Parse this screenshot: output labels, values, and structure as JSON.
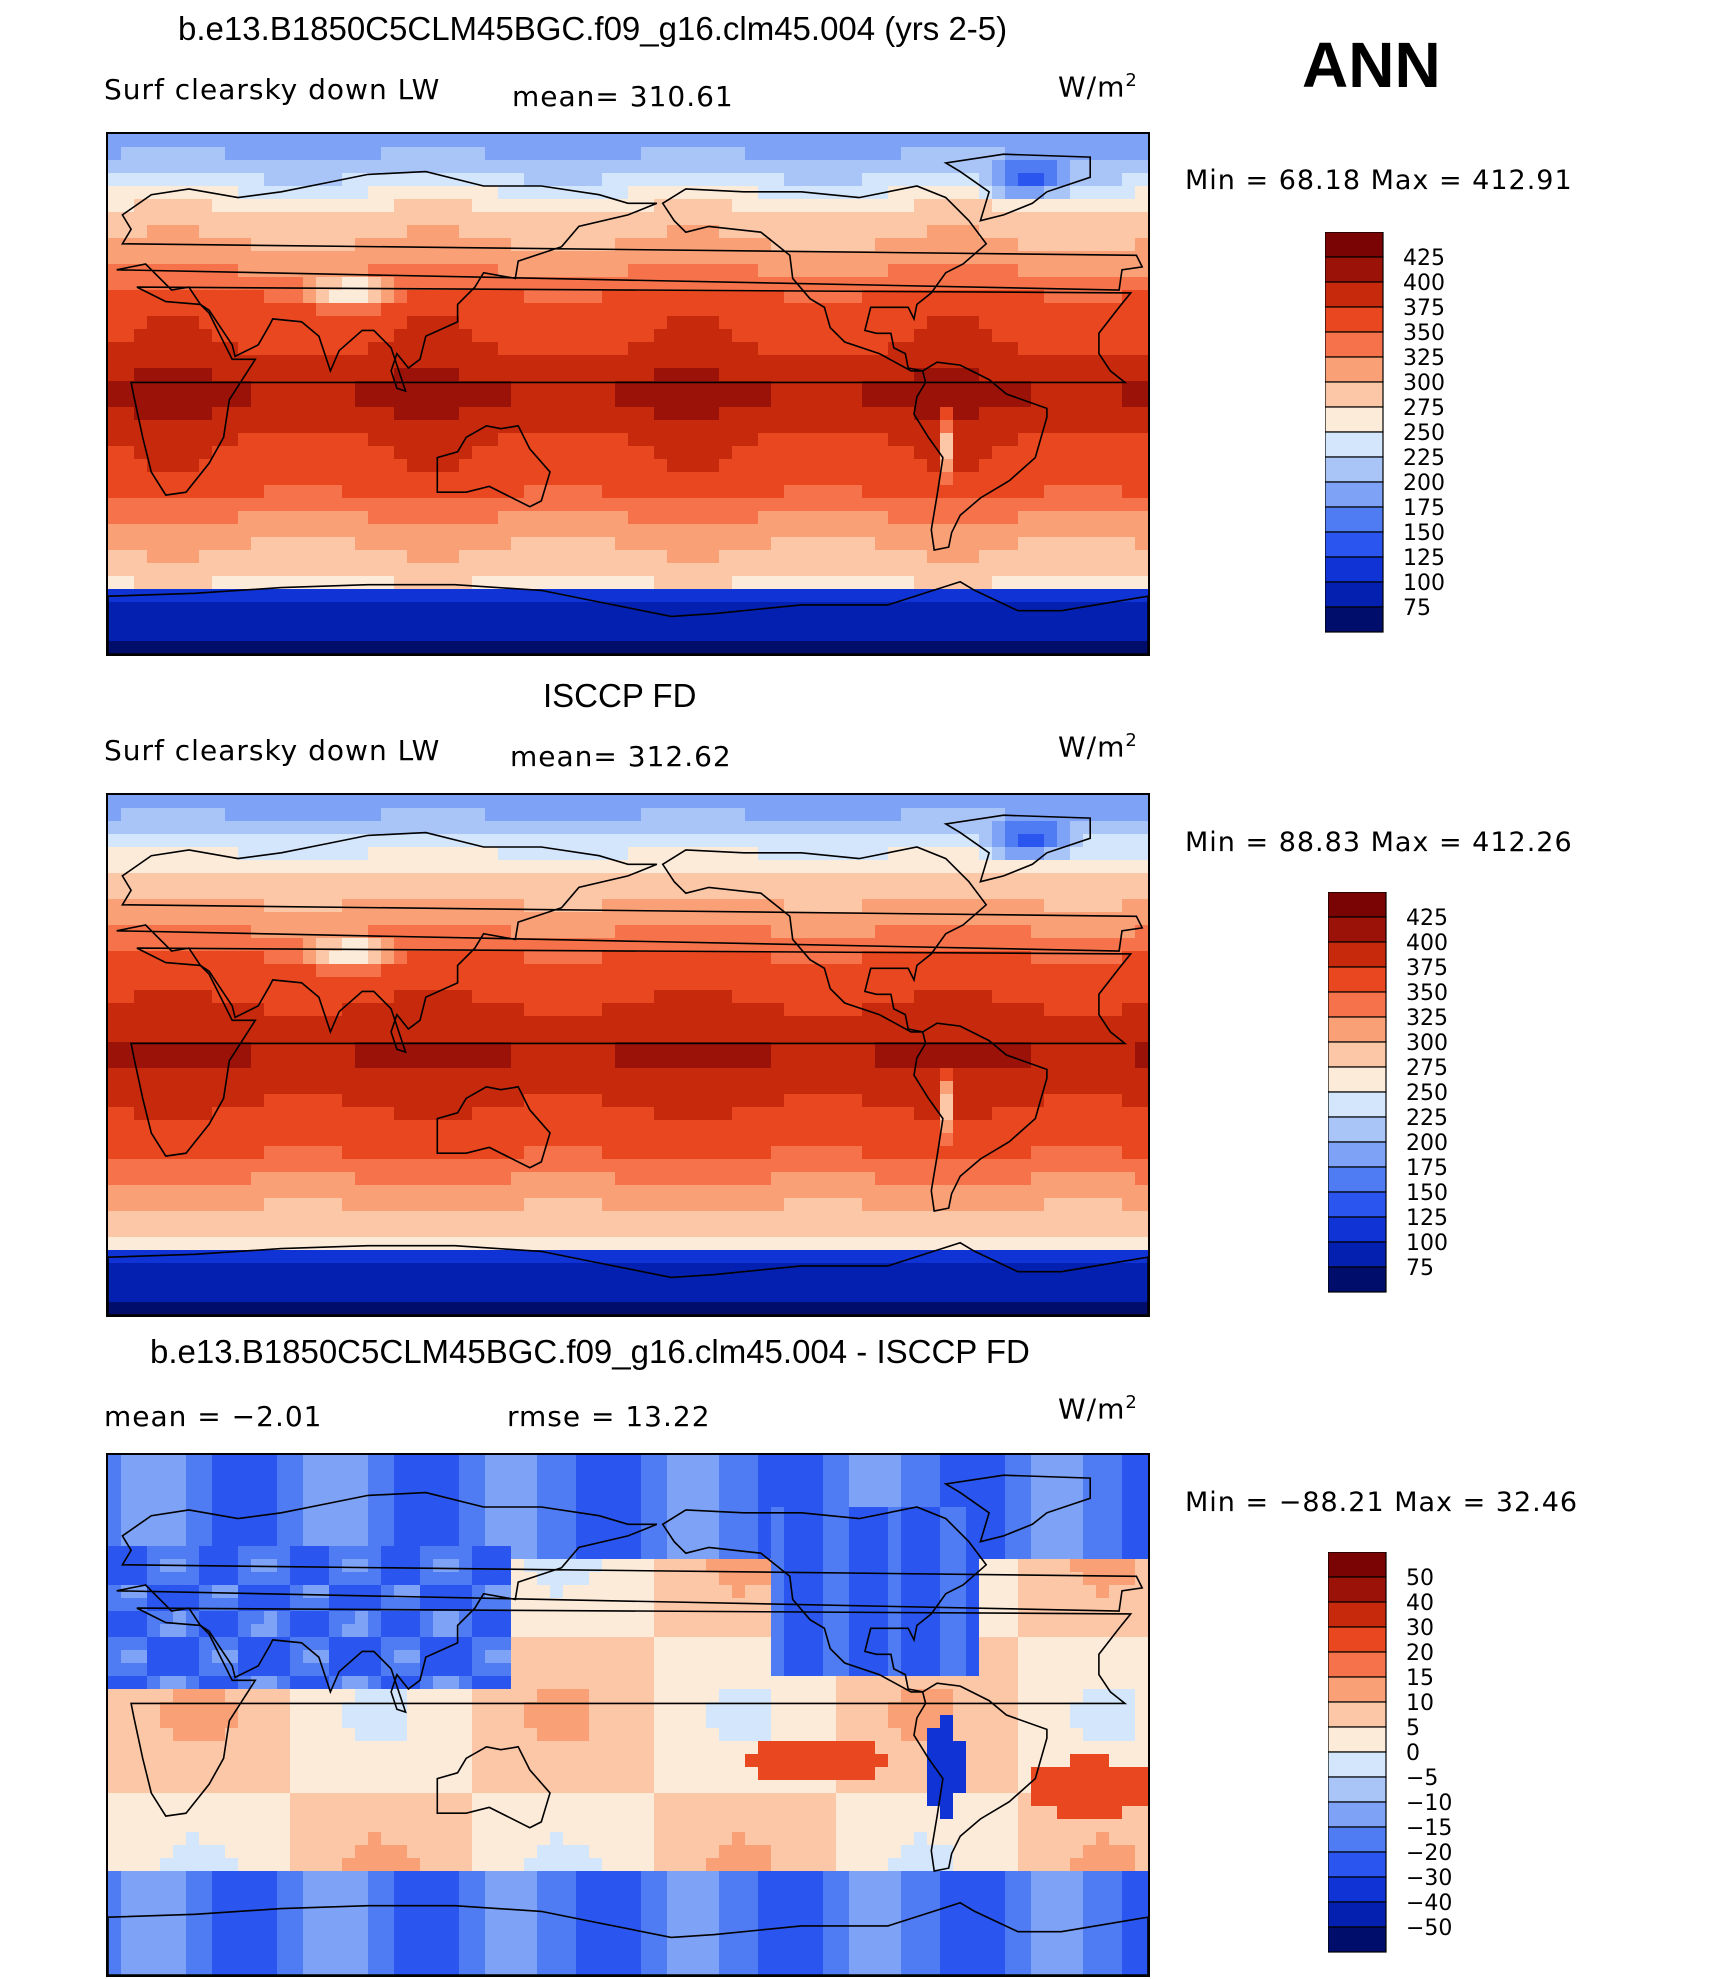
{
  "season": "ANN",
  "panels": [
    {
      "id": "model",
      "title": "b.e13.B1850C5CLM45BGC.f09_g16.clm45.004 (yrs 2-5)",
      "left_label": "Surf clearsky down LW",
      "mid_label": "mean=  310.61",
      "units_label": "W/m",
      "units_sup": "2",
      "minmax": "Min =   68.18 Max = 412.91",
      "scheme": "abs",
      "colorbar_labels": [
        "425",
        "400",
        "375",
        "350",
        "325",
        "300",
        "275",
        "250",
        "225",
        "200",
        "175",
        "150",
        "125",
        "100",
        "75"
      ]
    },
    {
      "id": "obs",
      "title": "ISCCP FD",
      "left_label": "Surf clearsky down LW",
      "mid_label": "mean=  312.62",
      "units_label": "W/m",
      "units_sup": "2",
      "minmax": "Min =   88.83 Max = 412.26",
      "scheme": "abs",
      "colorbar_labels": [
        "425",
        "400",
        "375",
        "350",
        "325",
        "300",
        "275",
        "250",
        "225",
        "200",
        "175",
        "150",
        "125",
        "100",
        "75"
      ]
    },
    {
      "id": "diff",
      "title": "b.e13.B1850C5CLM45BGC.f09_g16.clm45.004 - ISCCP FD",
      "left_label": "mean =    −2.01",
      "mid_label": "rmse =    13.22",
      "units_label": "W/m",
      "units_sup": "2",
      "minmax": "Min = −88.21 Max =   32.46",
      "scheme": "diff",
      "colorbar_labels": [
        "50",
        "40",
        "30",
        "20",
        "15",
        "10",
        "5",
        "0",
        "−5",
        "−10",
        "−15",
        "−20",
        "−30",
        "−40",
        "−50"
      ]
    }
  ],
  "chart_data": [
    {
      "type": "heatmap",
      "title": "b.e13.B1850C5CLM45BGC.f09_g16.clm45.004 (yrs 2-5)",
      "variable": "Surf clearsky down LW",
      "units": "W/m2",
      "mean": 310.61,
      "min": 68.18,
      "max": 412.91,
      "levels": [
        75,
        100,
        125,
        150,
        175,
        200,
        225,
        250,
        275,
        300,
        325,
        350,
        375,
        400,
        425
      ]
    },
    {
      "type": "heatmap",
      "title": "ISCCP FD",
      "variable": "Surf clearsky down LW",
      "units": "W/m2",
      "mean": 312.62,
      "min": 88.83,
      "max": 412.26,
      "levels": [
        75,
        100,
        125,
        150,
        175,
        200,
        225,
        250,
        275,
        300,
        325,
        350,
        375,
        400,
        425
      ]
    },
    {
      "type": "heatmap",
      "title": "b.e13.B1850C5CLM45BGC.f09_g16.clm45.004 - ISCCP FD",
      "variable": "difference",
      "units": "W/m2",
      "mean": -2.01,
      "rmse": 13.22,
      "min": -88.21,
      "max": 32.46,
      "levels": [
        -50,
        -40,
        -30,
        -20,
        -15,
        -10,
        -5,
        0,
        5,
        10,
        15,
        20,
        30,
        40,
        50
      ]
    }
  ],
  "colors": {
    "abs_scale": [
      "#000d6b",
      "#0320b0",
      "#1033d6",
      "#2a55ee",
      "#4f7cf2",
      "#7ea2f5",
      "#a9c5f8",
      "#d3e6fb",
      "#fdebda",
      "#fcc7a6",
      "#f9a077",
      "#f5724a",
      "#e8471f",
      "#c7290c",
      "#9b1208",
      "#7a0403"
    ],
    "diff_scale": [
      "#000d6b",
      "#0320b0",
      "#1033d6",
      "#2a55ee",
      "#4f7cf2",
      "#7ea2f5",
      "#a9c5f8",
      "#d3e6fb",
      "#fdebda",
      "#fcc7a6",
      "#f9a077",
      "#f5724a",
      "#e8471f",
      "#c7290c",
      "#9b1208",
      "#7a0403"
    ]
  }
}
